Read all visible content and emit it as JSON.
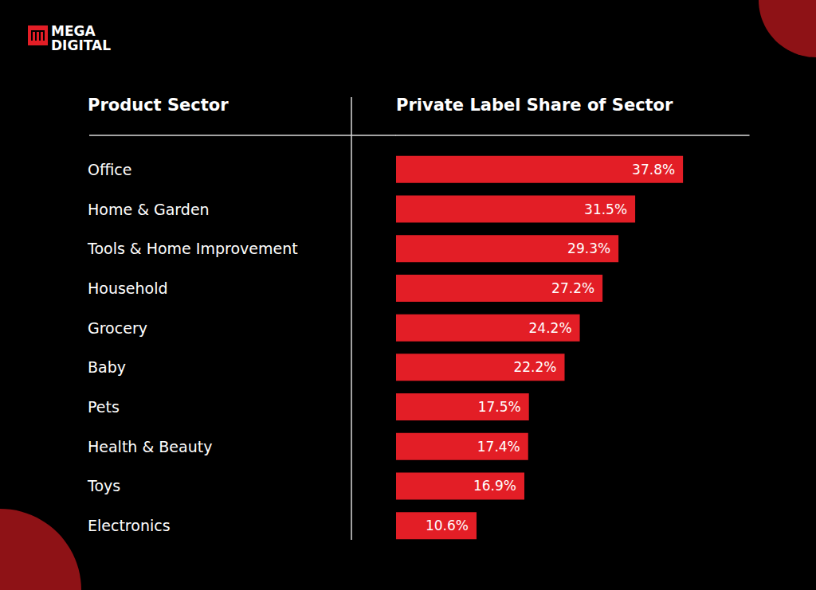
{
  "chart_data": {
    "type": "bar",
    "orientation": "horizontal",
    "annotations": [
      "MEGA",
      "DIGITAL"
    ],
    "y_label": "Product Sector",
    "x_label": "Private Label Share of Sector",
    "categories": [
      "Office",
      "Home & Garden",
      "Tools & Home Improvement",
      "Household",
      "Grocery",
      "Baby",
      "Pets",
      "Health & Beauty",
      "Toys",
      "Electronics"
    ],
    "values": [
      37.8,
      31.5,
      29.3,
      27.2,
      24.2,
      22.2,
      17.5,
      17.4,
      16.9,
      10.6
    ],
    "value_labels": [
      "37.8%",
      "31.5%",
      "29.3%",
      "27.2%",
      "24.2%",
      "22.2%",
      "17.5%",
      "17.4%",
      "16.9%",
      "10.6%"
    ],
    "color": "#e31e26",
    "xlim": [
      0,
      46.5
    ],
    "grid": false,
    "data_labels": true,
    "tick_labels": "y"
  }
}
